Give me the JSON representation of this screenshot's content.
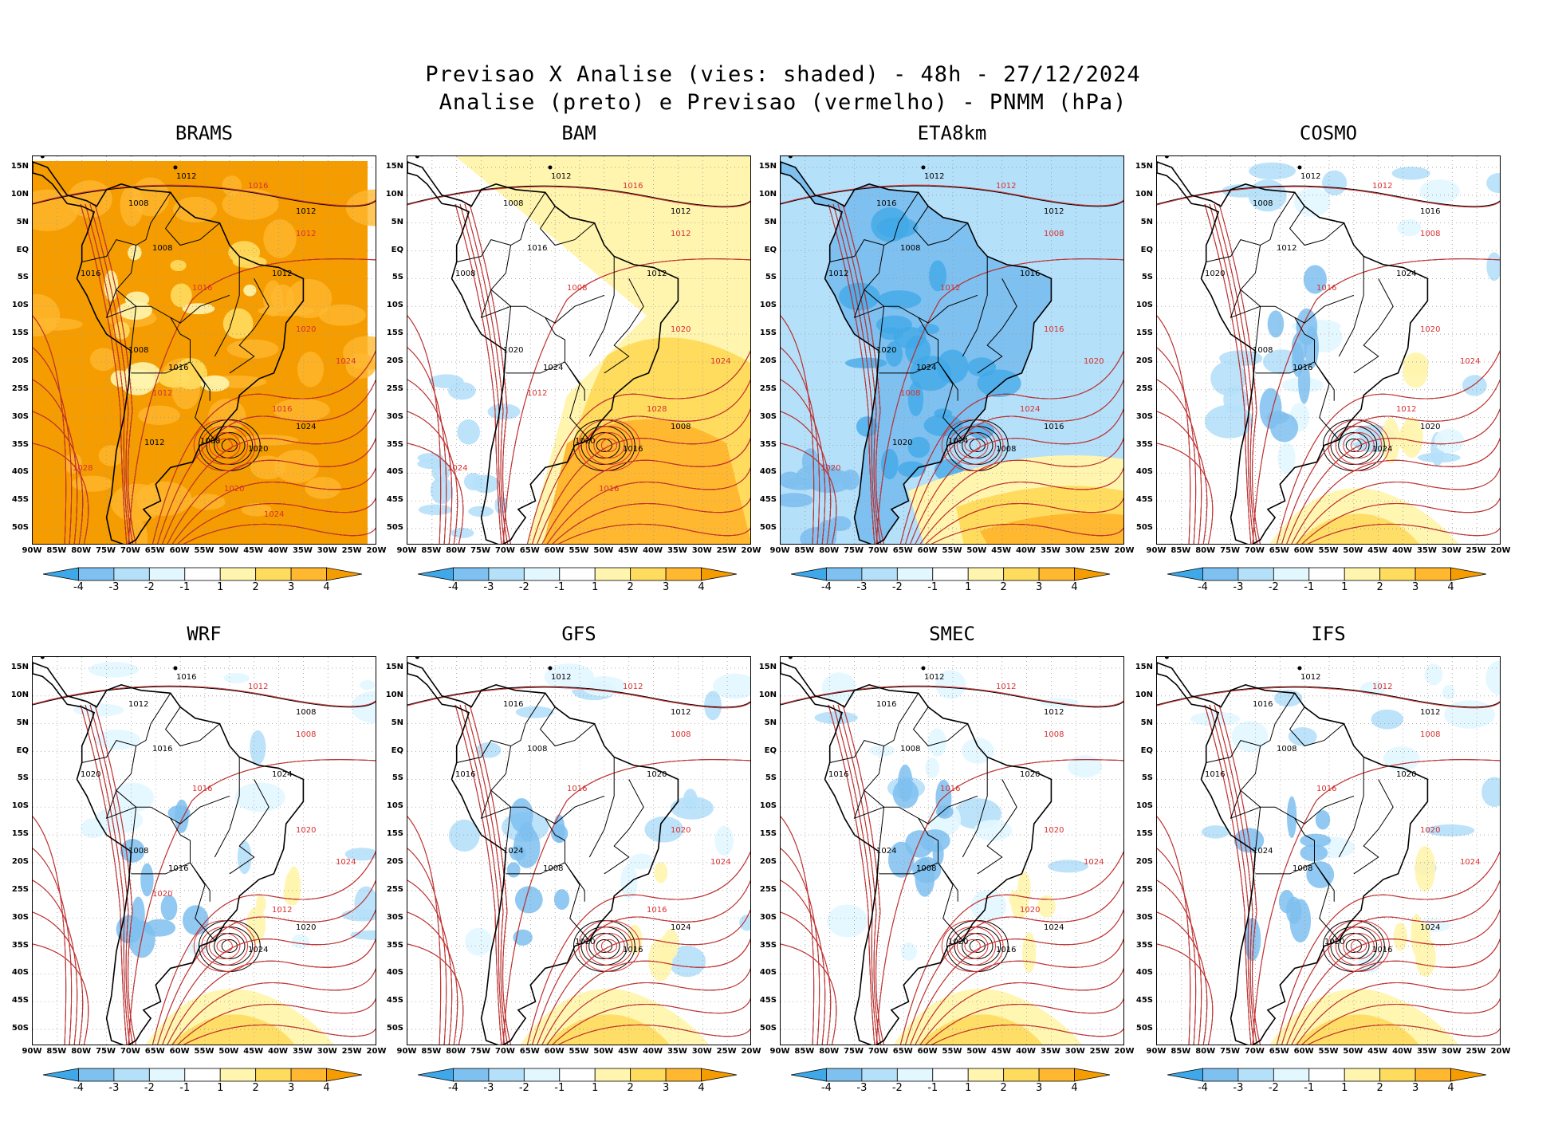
{
  "header": {
    "line1": "Previsao X Analise (vies: shaded) - 48h - 27/12/2024",
    "line2": "Analise (preto) e Previsao (vermelho) - PNMM (hPa)"
  },
  "lat_labels": [
    "15N",
    "10N",
    "5N",
    "EQ",
    "5S",
    "10S",
    "15S",
    "20S",
    "25S",
    "30S",
    "35S",
    "40S",
    "45S",
    "50S"
  ],
  "lon_labels": [
    "90W",
    "85W",
    "80W",
    "75W",
    "70W",
    "65W",
    "60W",
    "55W",
    "50W",
    "45W",
    "40W",
    "35W",
    "30W",
    "25W",
    "20W"
  ],
  "colorbar": {
    "ticks": [
      "-4",
      "-3",
      "-2",
      "-1",
      "1",
      "2",
      "3",
      "4"
    ],
    "colors": [
      "#3fa8e8",
      "#7ec0f0",
      "#b5e0fa",
      "#e3f7ff",
      "#ffffff",
      "#fff5ae",
      "#ffdb5e",
      "#ffb830",
      "#f59d00"
    ]
  },
  "panels": [
    {
      "name": "BRAMS",
      "bias": "warm",
      "labels": {
        "black": [
          "1012",
          "1008",
          "1012",
          "1008",
          "1016",
          "1012",
          "1008",
          "1016",
          "1020",
          "1024",
          "1008",
          "1012"
        ],
        "red": [
          "1016",
          "1012",
          "1016",
          "1020",
          "1024",
          "1016",
          "1012",
          "1028",
          "1020",
          "1024"
        ]
      }
    },
    {
      "name": "BAM",
      "bias": "warm2",
      "labels": {
        "black": [
          "1012",
          "1008",
          "1012",
          "1016",
          "1008",
          "1012",
          "1020",
          "1024",
          "1016",
          "1008",
          "1020"
        ],
        "red": [
          "1016",
          "1012",
          "1008",
          "1020",
          "1024",
          "1028",
          "1012",
          "1024",
          "1016"
        ]
      }
    },
    {
      "name": "ETA8km",
      "bias": "cold",
      "labels": {
        "black": [
          "1012",
          "1016",
          "1012",
          "1008",
          "1012",
          "1016",
          "1020",
          "1024",
          "1008",
          "1016",
          "1024",
          "1020"
        ],
        "red": [
          "1012",
          "1008",
          "1012",
          "1016",
          "1020",
          "1024",
          "1008",
          "1020"
        ]
      }
    },
    {
      "name": "COSMO",
      "bias": "mixed",
      "labels": {
        "black": [
          "1012",
          "1008",
          "1016",
          "1012",
          "1020",
          "1024",
          "1008",
          "1016",
          "1024",
          "1020"
        ],
        "red": [
          "1012",
          "1008",
          "1016",
          "1020",
          "1024",
          "1012"
        ]
      }
    },
    {
      "name": "WRF",
      "bias": "mixed2",
      "labels": {
        "black": [
          "1016",
          "1012",
          "1008",
          "1016",
          "1020",
          "1024",
          "1008",
          "1016",
          "1024",
          "1020"
        ],
        "red": [
          "1012",
          "1008",
          "1016",
          "1020",
          "1024",
          "1012",
          "1020"
        ]
      }
    },
    {
      "name": "GFS",
      "bias": "light",
      "labels": {
        "black": [
          "1012",
          "1016",
          "1012",
          "1008",
          "1016",
          "1020",
          "1024",
          "1008",
          "1016",
          "1024",
          "1020"
        ],
        "red": [
          "1012",
          "1008",
          "1016",
          "1020",
          "1024",
          "1016"
        ]
      }
    },
    {
      "name": "SMEC",
      "bias": "light2",
      "labels": {
        "black": [
          "1012",
          "1016",
          "1012",
          "1008",
          "1016",
          "1020",
          "1024",
          "1008",
          "1016",
          "1024",
          "1020"
        ],
        "red": [
          "1012",
          "1008",
          "1016",
          "1020",
          "1024",
          "1020"
        ]
      }
    },
    {
      "name": "IFS",
      "bias": "light3",
      "labels": {
        "black": [
          "1012",
          "1016",
          "1012",
          "1008",
          "1016",
          "1020",
          "1024",
          "1008",
          "1016",
          "1024",
          "1020"
        ],
        "red": [
          "1012",
          "1008",
          "1016",
          "1020",
          "1024"
        ]
      }
    }
  ]
}
